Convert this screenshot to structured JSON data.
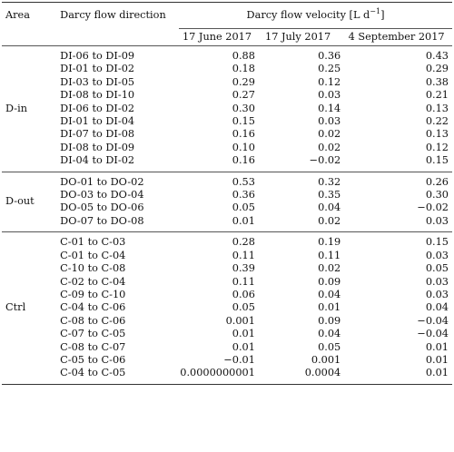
{
  "header": {
    "area": "Area",
    "direction": "Darcy flow direction",
    "velocity_group": "Darcy flow velocity [L d",
    "velocity_unit_sup": "−1",
    "velocity_close": "]",
    "dates": [
      "17 June 2017",
      "17 July 2017",
      "4 September 2017"
    ]
  },
  "groups": [
    {
      "area": "D-in",
      "rows": [
        {
          "dir": "DI-06 to DI-09",
          "v": [
            "0.88",
            "0.36",
            "0.43"
          ]
        },
        {
          "dir": "DI-01 to DI-02",
          "v": [
            "0.18",
            "0.25",
            "0.29"
          ]
        },
        {
          "dir": "DI-03 to DI-05",
          "v": [
            "0.29",
            "0.12",
            "0.38"
          ]
        },
        {
          "dir": "DI-08 to DI-10",
          "v": [
            "0.27",
            "0.03",
            "0.21"
          ]
        },
        {
          "dir": "DI-06 to DI-02",
          "v": [
            "0.30",
            "0.14",
            "0.13"
          ]
        },
        {
          "dir": "DI-01 to DI-04",
          "v": [
            "0.15",
            "0.03",
            "0.22"
          ]
        },
        {
          "dir": "DI-07 to DI-08",
          "v": [
            "0.16",
            "0.02",
            "0.13"
          ]
        },
        {
          "dir": "DI-08 to DI-09",
          "v": [
            "0.10",
            "0.02",
            "0.12"
          ]
        },
        {
          "dir": "DI-04 to DI-02",
          "v": [
            "0.16",
            "−0.02",
            "0.15"
          ]
        }
      ]
    },
    {
      "area": "D-out",
      "rows": [
        {
          "dir": "DO-01 to DO-02",
          "v": [
            "0.53",
            "0.32",
            "0.26"
          ]
        },
        {
          "dir": "DO-03 to DO-04",
          "v": [
            "0.36",
            "0.35",
            "0.30"
          ]
        },
        {
          "dir": "DO-05 to DO-06",
          "v": [
            "0.05",
            "0.04",
            "−0.02"
          ]
        },
        {
          "dir": "DO-07 to DO-08",
          "v": [
            "0.01",
            "0.02",
            "0.03"
          ]
        }
      ]
    },
    {
      "area": "Ctrl",
      "rows": [
        {
          "dir": "C-01 to C-03",
          "v": [
            "0.28",
            "0.19",
            "0.15"
          ]
        },
        {
          "dir": "C-01 to C-04",
          "v": [
            "0.11",
            "0.11",
            "0.03"
          ]
        },
        {
          "dir": "C-10 to C-08",
          "v": [
            "0.39",
            "0.02",
            "0.05"
          ]
        },
        {
          "dir": "C-02 to C-04",
          "v": [
            "0.11",
            "0.09",
            "0.03"
          ]
        },
        {
          "dir": "C-09 to C-10",
          "v": [
            "0.06",
            "0.04",
            "0.03"
          ]
        },
        {
          "dir": "C-04 to C-06",
          "v": [
            "0.05",
            "0.01",
            "0.04"
          ]
        },
        {
          "dir": "C-08 to C-06",
          "v": [
            "0.001",
            "0.09",
            "−0.04"
          ]
        },
        {
          "dir": "C-07 to C-05",
          "v": [
            "0.01",
            "0.04",
            "−0.04"
          ]
        },
        {
          "dir": "C-08 to C-07",
          "v": [
            "0.01",
            "0.05",
            "0.01"
          ]
        },
        {
          "dir": "C-05 to C-06",
          "v": [
            "−0.01",
            "0.001",
            "0.01"
          ]
        },
        {
          "dir": "C-04 to C-05",
          "v": [
            "0.0000000001",
            "0.0004",
            "0.01"
          ]
        }
      ]
    }
  ]
}
